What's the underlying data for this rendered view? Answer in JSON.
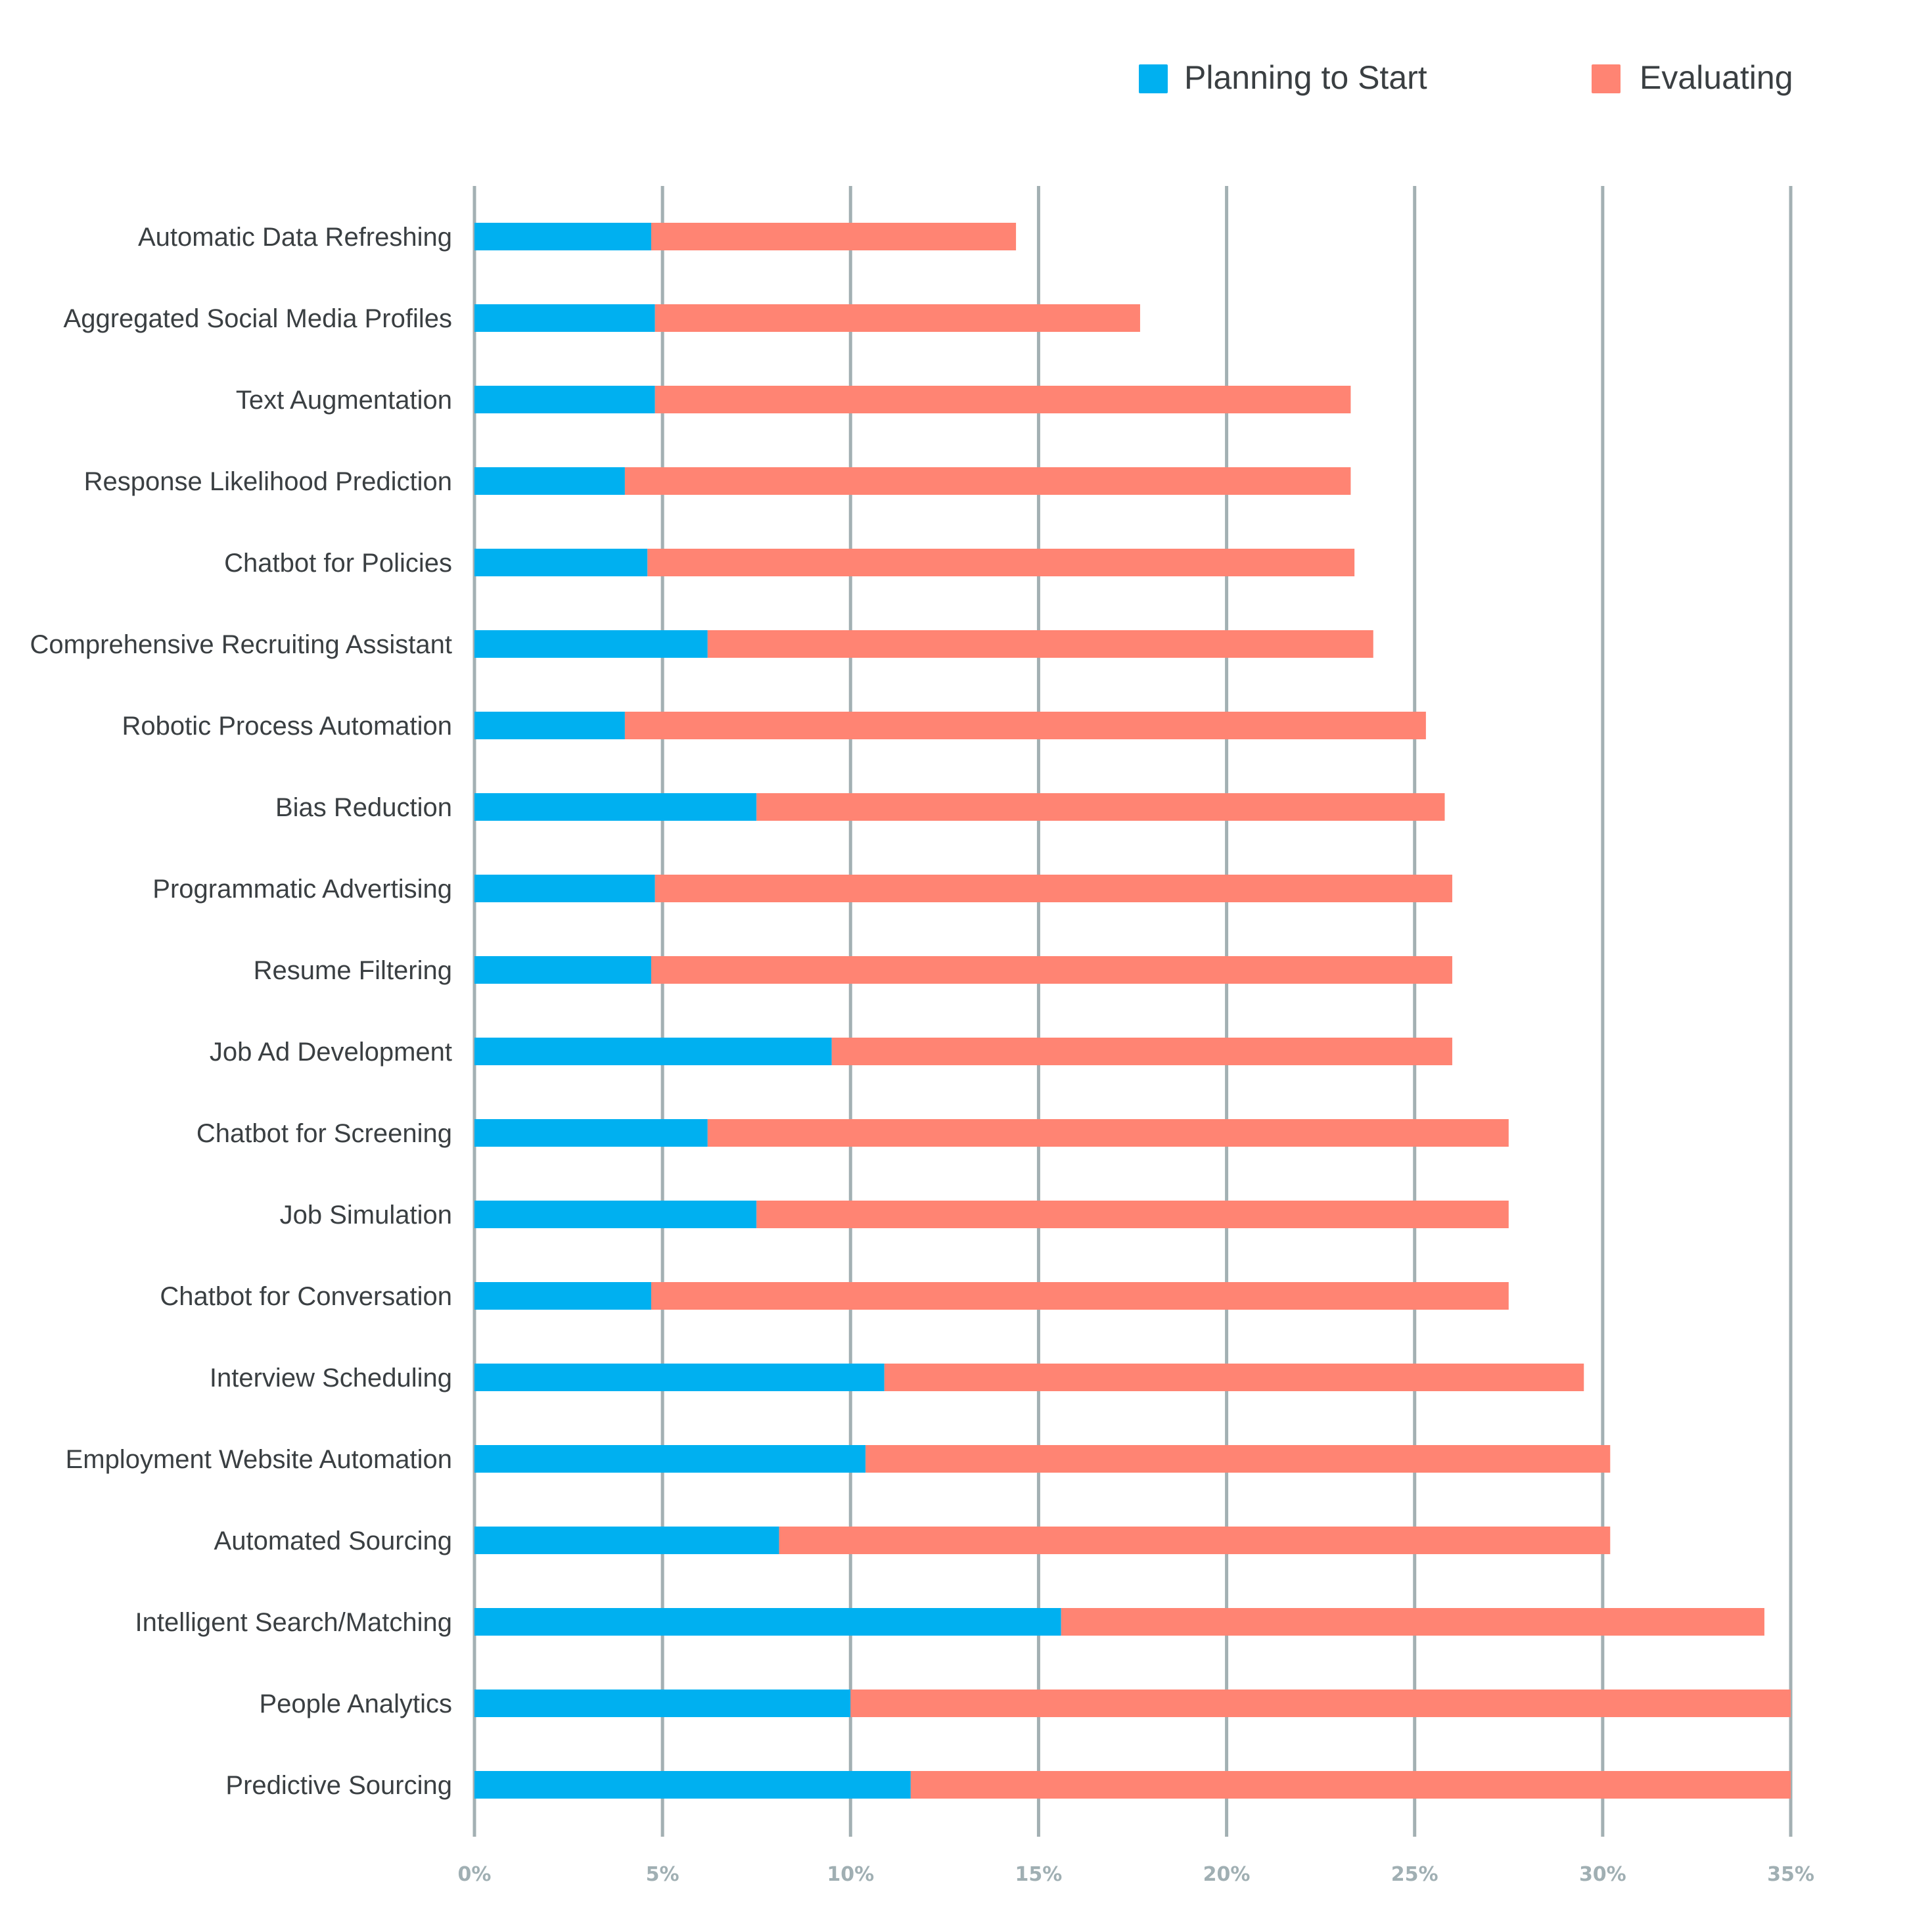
{
  "chart_data": {
    "type": "bar",
    "orientation": "horizontal",
    "stacked": true,
    "title": "",
    "xlabel": "",
    "ylabel": "",
    "xlim": [
      0,
      35
    ],
    "x_tick_step": 5,
    "x_tick_format": "percent",
    "grid": true,
    "legend_position": "top-right",
    "x_ticks": [
      "0%",
      "5%",
      "10%",
      "15%",
      "20%",
      "25%",
      "30%",
      "35%"
    ],
    "categories": [
      "Automatic Data Refreshing",
      "Aggregated Social Media Profiles",
      "Text Augmentation",
      "Response Likelihood Prediction",
      "Chatbot for Policies",
      "Comprehensive Recruiting Assistant",
      "Robotic Process Automation",
      "Bias Reduction",
      "Programmatic Advertising",
      "Resume Filtering",
      "Job Ad Development",
      "Chatbot for Screening",
      "Job Simulation",
      "Chatbot for Conversation",
      "Interview Scheduling",
      "Employment Website Automation",
      "Automated Sourcing",
      "Intelligent Search/Matching",
      "People Analytics",
      "Predictive Sourcing"
    ],
    "series": [
      {
        "name": "Planning to Start",
        "color": "#00b0f0",
        "values": [
          4.7,
          4.8,
          4.8,
          4.0,
          4.6,
          6.2,
          4.0,
          7.5,
          4.8,
          4.7,
          9.5,
          6.2,
          7.5,
          4.7,
          10.9,
          10.4,
          8.1,
          15.6,
          10.0,
          11.6
        ]
      },
      {
        "name": "Evaluating",
        "color": "#ff8473",
        "values": [
          9.7,
          12.9,
          18.5,
          19.3,
          18.8,
          17.7,
          21.3,
          18.3,
          21.2,
          21.3,
          16.5,
          21.3,
          20.0,
          22.8,
          18.6,
          19.8,
          22.1,
          18.7,
          25.0,
          23.4
        ]
      }
    ]
  },
  "colors": {
    "gridline": "#a3b0b3",
    "label_text": "#3a3f42",
    "tick_text": "#a0afb3"
  }
}
